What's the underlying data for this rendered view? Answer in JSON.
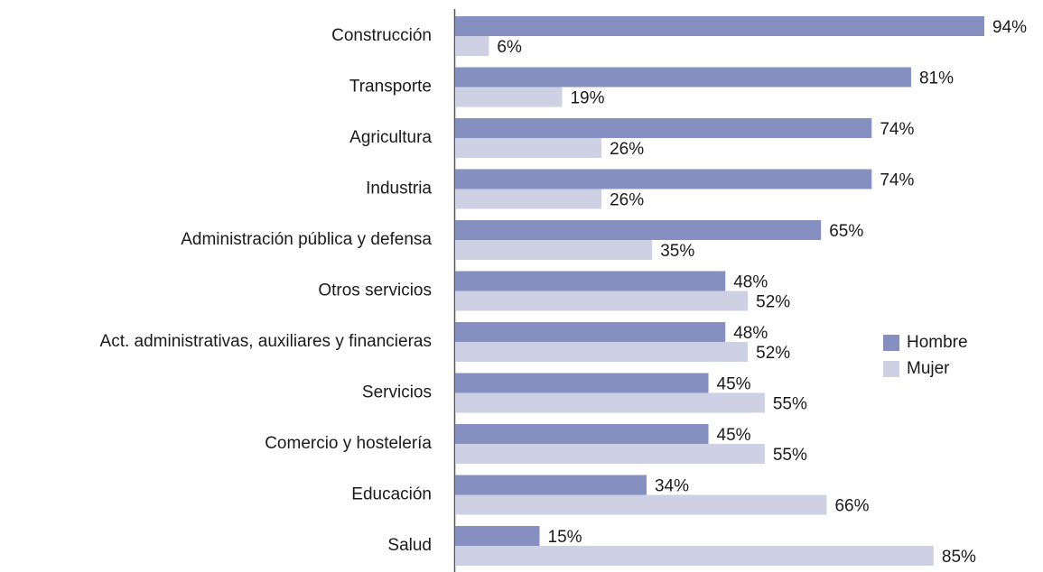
{
  "chart_data": {
    "type": "bar",
    "orientation": "horizontal",
    "categories": [
      "Construcción",
      "Transporte",
      "Agricultura",
      "Industria",
      "Administración pública y defensa",
      "Otros servicios",
      "Act. administrativas, auxiliares y financieras",
      "Servicios",
      "Comercio y hostelería",
      "Educación",
      "Salud"
    ],
    "series": [
      {
        "name": "Hombre",
        "color": "#8590c1",
        "values": [
          94,
          81,
          74,
          74,
          65,
          48,
          48,
          45,
          45,
          34,
          15
        ],
        "value_labels": [
          "94%",
          "81%",
          "74%",
          "74%",
          "65%",
          "48%",
          "48%",
          "45%",
          "45%",
          "34%",
          "15%"
        ]
      },
      {
        "name": "Mujer",
        "color": "#ced1e3",
        "values": [
          6,
          19,
          26,
          26,
          35,
          52,
          52,
          55,
          55,
          66,
          85
        ],
        "value_labels": [
          "6%",
          "19%",
          "26%",
          "26%",
          "35%",
          "52%",
          "52%",
          "55%",
          "55%",
          "66%",
          "85%"
        ]
      }
    ],
    "legend": "right"
  }
}
